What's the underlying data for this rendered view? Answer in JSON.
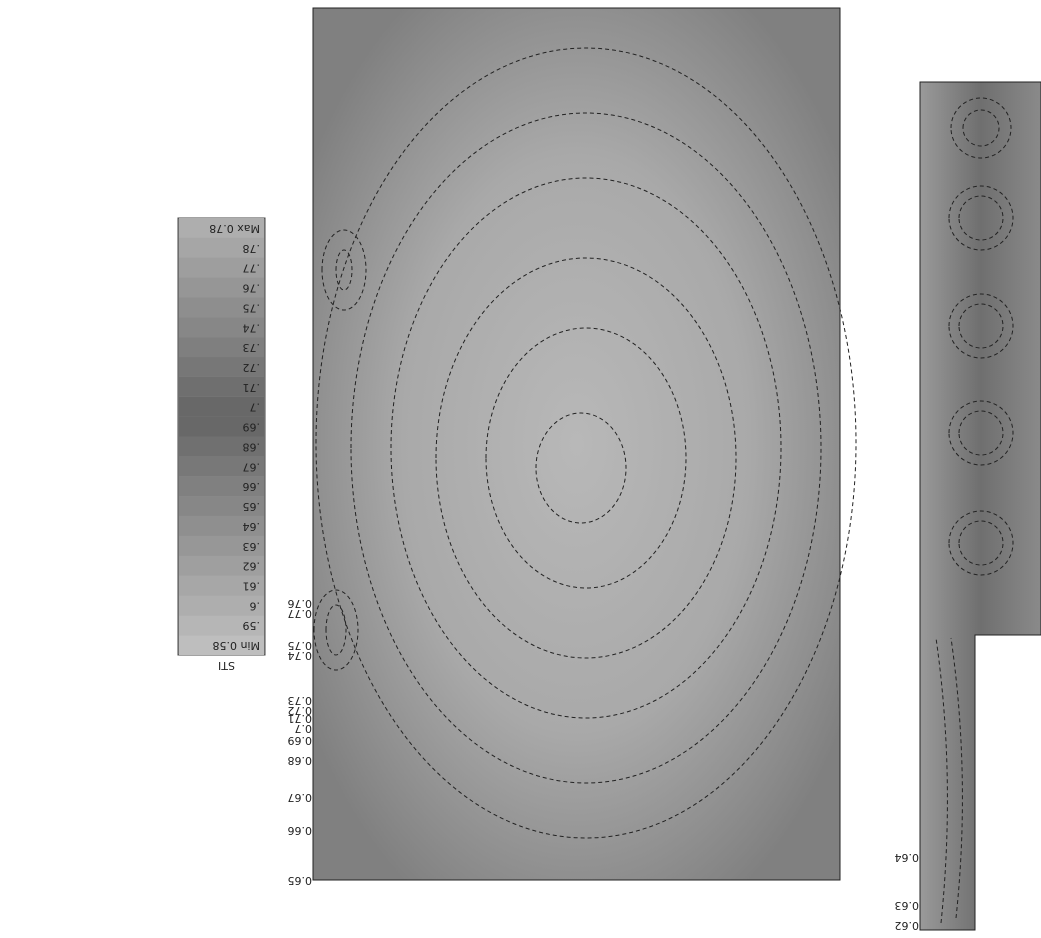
{
  "colorbar": {
    "title": "STI",
    "labels": [
      "Min 0.58",
      ".59",
      ".6",
      ".61",
      ".62",
      ".63",
      ".64",
      ".65",
      ".66",
      ".67",
      ".68",
      ".69",
      ".7",
      ".71",
      ".72",
      ".73",
      ".74",
      ".75",
      ".76",
      ".77",
      ".78",
      "Max 0.78"
    ]
  },
  "contour_labels": {
    "main": [
      "0.65",
      "0.66",
      "0.67",
      "0.68",
      "0.69",
      "0.7",
      "0.71",
      "0.72",
      "0.73",
      "0.74",
      "0.75",
      "0.77",
      "0.76"
    ],
    "side": [
      "0.64",
      "0.63",
      "0.62"
    ]
  }
}
